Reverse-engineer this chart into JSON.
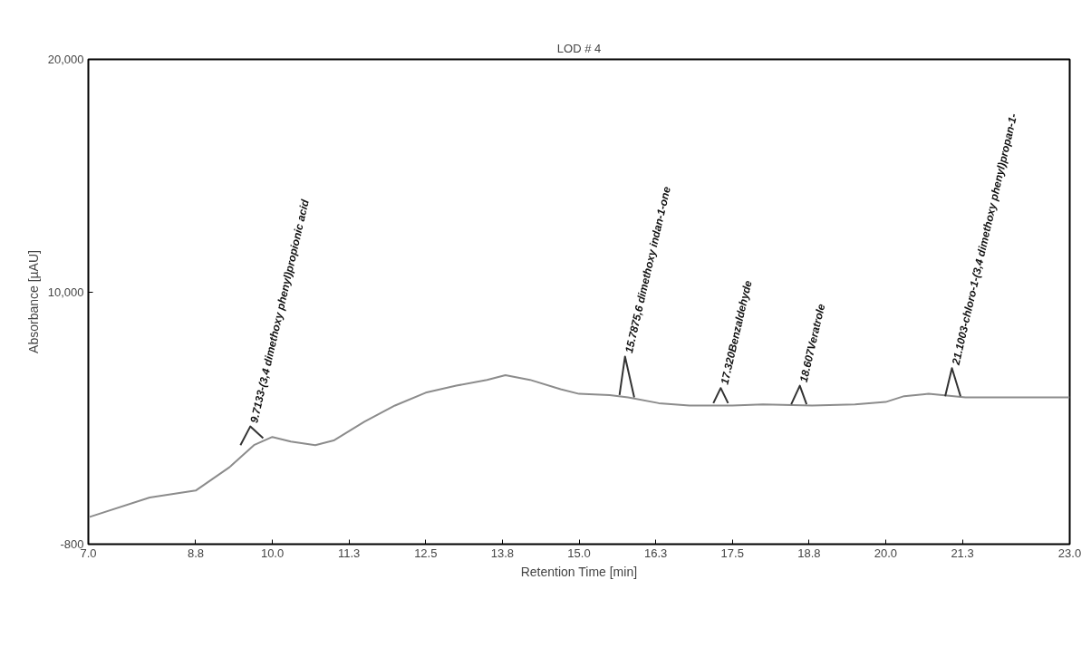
{
  "chart_data": {
    "type": "line",
    "title": "LOD # 4",
    "xlabel": "Retention Time [min]",
    "ylabel": "Absorbance [µAU]",
    "xlim": [
      7.0,
      23.0
    ],
    "ylim": [
      -800,
      20000
    ],
    "xticks": [
      {
        "value": 7,
        "label": "7.0"
      },
      {
        "value": 8.75,
        "label": "8.8"
      },
      {
        "value": 10,
        "label": "10.0"
      },
      {
        "value": 11.25,
        "label": "11.3"
      },
      12.5,
      {
        "value": 13.75,
        "label": "13.8"
      },
      {
        "value": 15,
        "label": "15.0"
      },
      {
        "value": 16.25,
        "label": "16.3"
      },
      17.5,
      {
        "value": 18.75,
        "label": "18.8"
      },
      {
        "value": 20,
        "label": "20.0"
      },
      {
        "value": 21.25,
        "label": "21.3"
      },
      {
        "value": 23,
        "label": "23.0"
      }
    ],
    "yticks": [
      {
        "value": -800,
        "label": "-800"
      },
      {
        "value": 10000,
        "label": "10,000"
      },
      {
        "value": 20000,
        "label": "20,000"
      }
    ],
    "grid": false,
    "marker": "none",
    "line_style": "solid",
    "series": [
      {
        "color": "#8c8c8c",
        "x": [
          7.0,
          8.0,
          8.75,
          9.3,
          9.7,
          10.0,
          10.3,
          10.7,
          11.0,
          11.5,
          12.0,
          12.5,
          13.0,
          13.5,
          13.8,
          14.2,
          14.7,
          15.0,
          15.5,
          15.8,
          16.3,
          16.8,
          17.5,
          18.0,
          18.8,
          19.5,
          20.0,
          20.3,
          20.7,
          21.3,
          22.0,
          23.0
        ],
        "values": [
          350,
          1200,
          1500,
          2500,
          3450,
          3800,
          3600,
          3450,
          3650,
          4450,
          5150,
          5700,
          6000,
          6250,
          6450,
          6250,
          5850,
          5650,
          5600,
          5500,
          5250,
          5150,
          5150,
          5200,
          5150,
          5200,
          5300,
          5550,
          5650,
          5500,
          5500,
          5500
        ]
      },
      {
        "color": "#333333",
        "x": [
          9.48,
          9.64,
          9.85,
          9.9,
          15.66,
          15.75,
          15.9,
          15.95,
          17.19,
          17.31,
          17.43,
          17.5,
          18.46,
          18.6,
          18.71,
          18.8,
          20.97,
          21.08,
          21.22
        ],
        "values": [
          3450,
          4250,
          3750,
          null,
          5600,
          7250,
          5500,
          null,
          5250,
          5900,
          5250,
          null,
          5200,
          6000,
          5200,
          null,
          5550,
          6750,
          5550
        ]
      }
    ],
    "annotations": [
      {
        "text": "9.7133-(3,4 dimethoxy phenyl)propionic acid",
        "x": 9.64,
        "y": 4250
      },
      {
        "text": "15.7875,6 dimethoxy indan-1-one",
        "x": 15.75,
        "y": 7250
      },
      {
        "text": "17.320Benzaldehyde",
        "x": 17.31,
        "y": 5900
      },
      {
        "text": "18.607Veratrole",
        "x": 18.6,
        "y": 6000
      },
      {
        "text": "21.1003-chloro-1-(3,4 dimethoxy phenyl)propan-1-",
        "x": 21.08,
        "y": 6750
      }
    ]
  }
}
